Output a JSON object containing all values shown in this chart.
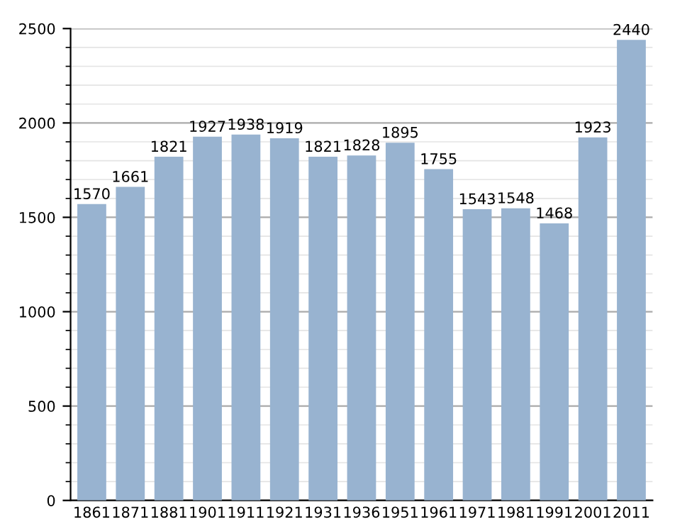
{
  "chart_data": {
    "type": "bar",
    "categories": [
      "1861",
      "1871",
      "1881",
      "1901",
      "1911",
      "1921",
      "1931",
      "1936",
      "1951",
      "1961",
      "1971",
      "1981",
      "1991",
      "2001",
      "2011"
    ],
    "values": [
      1570,
      1661,
      1821,
      1927,
      1938,
      1919,
      1821,
      1828,
      1895,
      1755,
      1543,
      1548,
      1468,
      1923,
      2440
    ],
    "color": "#98b3d0",
    "ylim": [
      0,
      2500
    ],
    "yticks": [
      0,
      500,
      1000,
      1500,
      2000,
      2500
    ],
    "grid": "y",
    "data_labels": true
  }
}
